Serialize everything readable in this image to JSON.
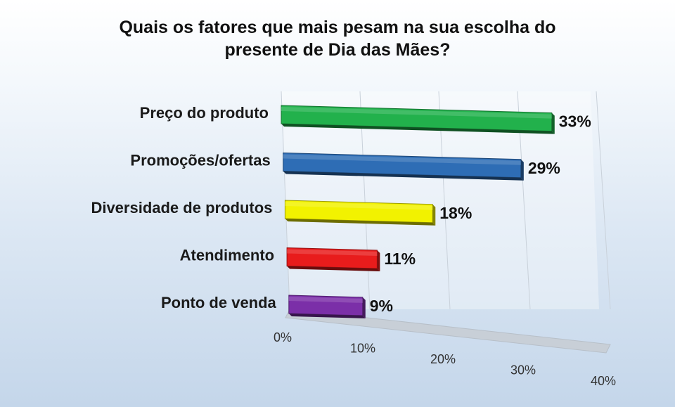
{
  "chart_data": {
    "type": "bar",
    "orientation": "horizontal",
    "style": "3d-perspective",
    "title": "Quais os fatores que mais  pesam na sua escolha do presente de Dia das Mães?",
    "title_lines": [
      "Quais os fatores que mais  pesam na sua escolha do",
      "presente de Dia das Mães?"
    ],
    "categories": [
      "Preço do produto",
      "Promoções/ofertas",
      "Diversidade de produtos",
      "Atendimento",
      "Ponto de venda"
    ],
    "values": [
      33,
      29,
      18,
      11,
      9
    ],
    "value_labels": [
      "33%",
      "29%",
      "18%",
      "11%",
      "9%"
    ],
    "colors": [
      "#22b14c",
      "#2e6db5",
      "#f2f200",
      "#e81c1c",
      "#7b2fa8"
    ],
    "x_ticks": [
      "0%",
      "10%",
      "20%",
      "30%",
      "40%"
    ],
    "xlim": [
      0,
      40
    ],
    "grid": true,
    "legend": "none"
  }
}
